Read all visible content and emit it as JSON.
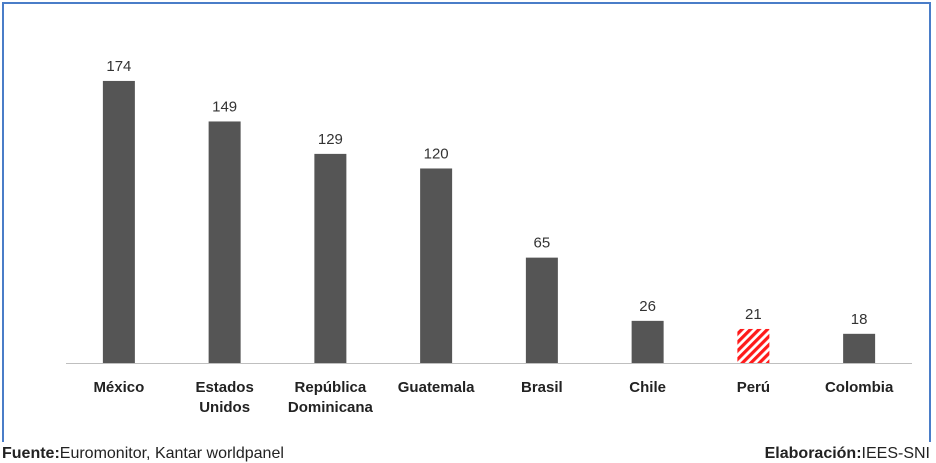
{
  "chart_data": {
    "type": "bar",
    "categories": [
      [
        "México"
      ],
      [
        "Estados",
        "Unidos"
      ],
      [
        "República",
        "Dominicana"
      ],
      [
        "Guatemala"
      ],
      [
        "Brasil"
      ],
      [
        "Chile"
      ],
      [
        "Perú"
      ],
      [
        "Colombia"
      ]
    ],
    "values": [
      174,
      149,
      129,
      120,
      65,
      26,
      21,
      18
    ],
    "highlight_index": 6,
    "colors": {
      "bar": "#555555",
      "highlight": "#ff1a1a",
      "axis": "#bfbfbf",
      "border": "#4a7dc8"
    },
    "ylim": [
      0,
      190
    ],
    "grid": false,
    "data_labels": true
  },
  "footer": {
    "source_label": "Fuente:",
    "source_text": "Euromonitor, Kantar worldpanel",
    "credit_label": "Elaboración:",
    "credit_text": "IEES-SNI"
  }
}
